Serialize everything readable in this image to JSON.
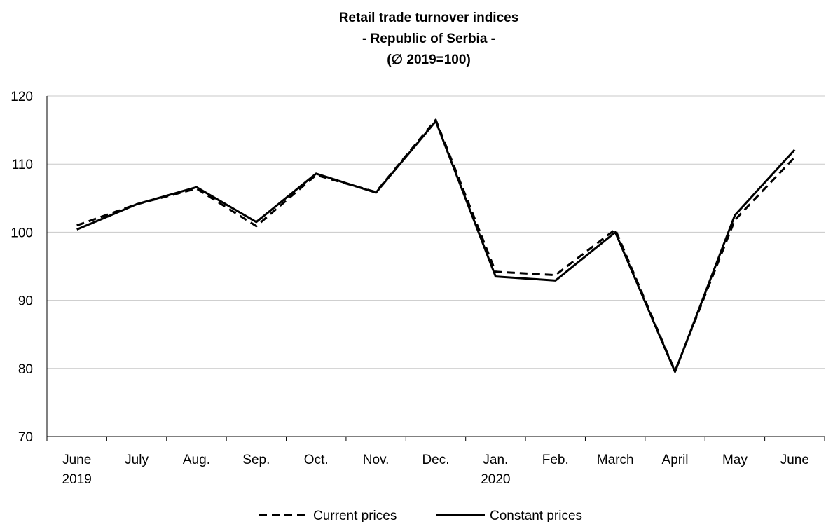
{
  "chart_data": {
    "type": "line",
    "title": [
      "Retail trade turnover indices",
      "- Republic of Serbia -",
      "(∅ 2019=100)"
    ],
    "categories": [
      [
        "June",
        "2019"
      ],
      [
        "July"
      ],
      [
        "Aug."
      ],
      [
        "Sep."
      ],
      [
        "Oct."
      ],
      [
        "Nov."
      ],
      [
        "Dec."
      ],
      [
        "Jan.",
        "2020"
      ],
      [
        "Feb."
      ],
      [
        "March"
      ],
      [
        "April"
      ],
      [
        "May"
      ],
      [
        "June"
      ]
    ],
    "series": [
      {
        "name": "Current prices",
        "style": "dashed",
        "color": "#000000",
        "values": [
          101.0,
          104.1,
          106.4,
          100.9,
          108.4,
          105.9,
          116.5,
          94.2,
          93.7,
          100.4,
          79.6,
          101.8,
          111.0
        ]
      },
      {
        "name": "Constant prices",
        "style": "solid",
        "color": "#000000",
        "values": [
          100.4,
          104.1,
          106.6,
          101.5,
          108.6,
          105.8,
          116.3,
          93.5,
          92.9,
          100.0,
          79.5,
          102.5,
          112.1
        ]
      }
    ],
    "xlabel": "",
    "ylabel": "",
    "ylim": [
      70,
      120
    ],
    "yticks": [
      70,
      80,
      90,
      100,
      110,
      120
    ],
    "grid": "horizontal",
    "legend": "bottom"
  }
}
